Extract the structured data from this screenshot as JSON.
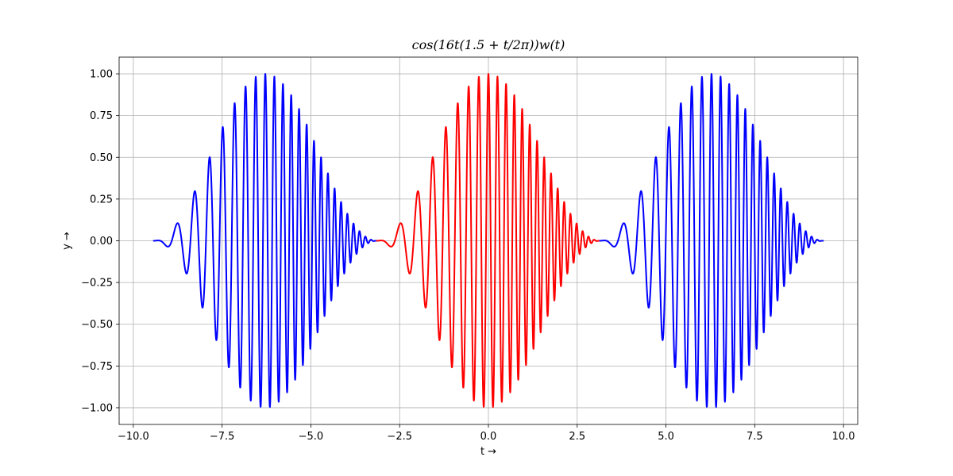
{
  "chart_data": {
    "type": "line",
    "title": "cos(16t(1.5 + t/2π))w(t)",
    "xlabel": "t →",
    "ylabel": "y →",
    "xlim": [
      -10.4,
      10.4
    ],
    "ylim": [
      -1.1,
      1.1
    ],
    "x_ticks": [
      -10.0,
      -7.5,
      -5.0,
      -2.5,
      0.0,
      2.5,
      5.0,
      7.5,
      10.0
    ],
    "x_tick_labels": [
      "−10.0",
      "−7.5",
      "−5.0",
      "−2.5",
      "0.0",
      "2.5",
      "5.0",
      "7.5",
      "10.0"
    ],
    "y_ticks": [
      -1.0,
      -0.75,
      -0.5,
      -0.25,
      0.0,
      0.25,
      0.5,
      0.75,
      1.0
    ],
    "y_tick_labels": [
      "−1.00",
      "−0.75",
      "−0.50",
      "−0.25",
      "0.00",
      "0.25",
      "0.50",
      "0.75",
      "1.00"
    ],
    "grid": true,
    "series": [
      {
        "color": "#0000ff",
        "x_range": [
          -9.42478,
          -3.14159
        ],
        "samples": 1400,
        "shift": -6.28319
      },
      {
        "color": "#ff0000",
        "x_range": [
          -3.14159,
          3.14159
        ],
        "samples": 1400,
        "shift": 0
      },
      {
        "color": "#0000ff",
        "x_range": [
          3.14159,
          9.42478
        ],
        "samples": 1400,
        "shift": 6.28319
      }
    ],
    "function": {
      "expression": "cos(16*u*(1.5 + u/(2*pi))) * w(u), u = t - shift",
      "window": "hann over [-pi, pi]"
    }
  }
}
